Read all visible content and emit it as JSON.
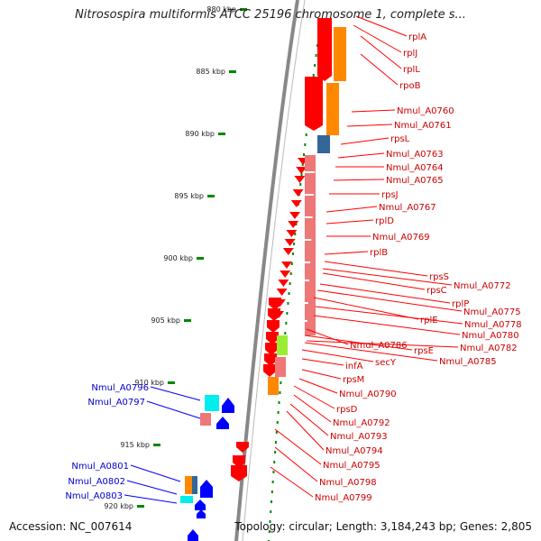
{
  "title": "Nitrosospira multiformis ATCC 25196 chromosome 1, complete s...",
  "footer": {
    "accession": "Accession: NC_007614",
    "topology": "Topology: circular; Length: 3,184,243 bp; Genes: 2,805"
  },
  "colors": {
    "backbone": "#888888",
    "red": "#ff0000",
    "pink": "#ee7777",
    "orange": "#ff8800",
    "steelblue": "#336699",
    "lime": "#99ee33",
    "cyan": "#00eeee",
    "blue": "#0000ff",
    "tick": "#008800",
    "red_label": "#cc0000",
    "blue_label": "#0000cc"
  },
  "scale_labels": [
    "880 kbp",
    "885 kbp",
    "890 kbp",
    "895 kbp",
    "900 kbp",
    "905 kbp",
    "910 kbp",
    "915 kbp",
    "920 kbp"
  ],
  "right_labels": [
    "rplA",
    "rplJ",
    "rplL",
    "rpoB",
    "Nmul_A0760",
    "Nmul_A0761",
    "rpsL",
    "Nmul_A0763",
    "Nmul_A0764",
    "Nmul_A0765",
    "rpsJ",
    "Nmul_A0767",
    "rplD",
    "Nmul_A0769",
    "rplB",
    "rpsS",
    "Nmul_A0772",
    "rpsC",
    "rplP",
    "Nmul_A0775",
    "rplE",
    "Nmul_A0778",
    "Nmul_A0780",
    "Nmul_A0786",
    "rpsE",
    "Nmul_A0782",
    "Nmul_A0785",
    "infA",
    "secY",
    "rpsM",
    "Nmul_A0790",
    "rpsD",
    "Nmul_A0792",
    "Nmul_A0793",
    "Nmul_A0794",
    "Nmul_A0795",
    "Nmul_A0798",
    "Nmul_A0799"
  ],
  "left_labels": [
    "Nmul_A0796",
    "Nmul_A0797",
    "Nmul_A0801",
    "Nmul_A0802",
    "Nmul_A0803"
  ]
}
